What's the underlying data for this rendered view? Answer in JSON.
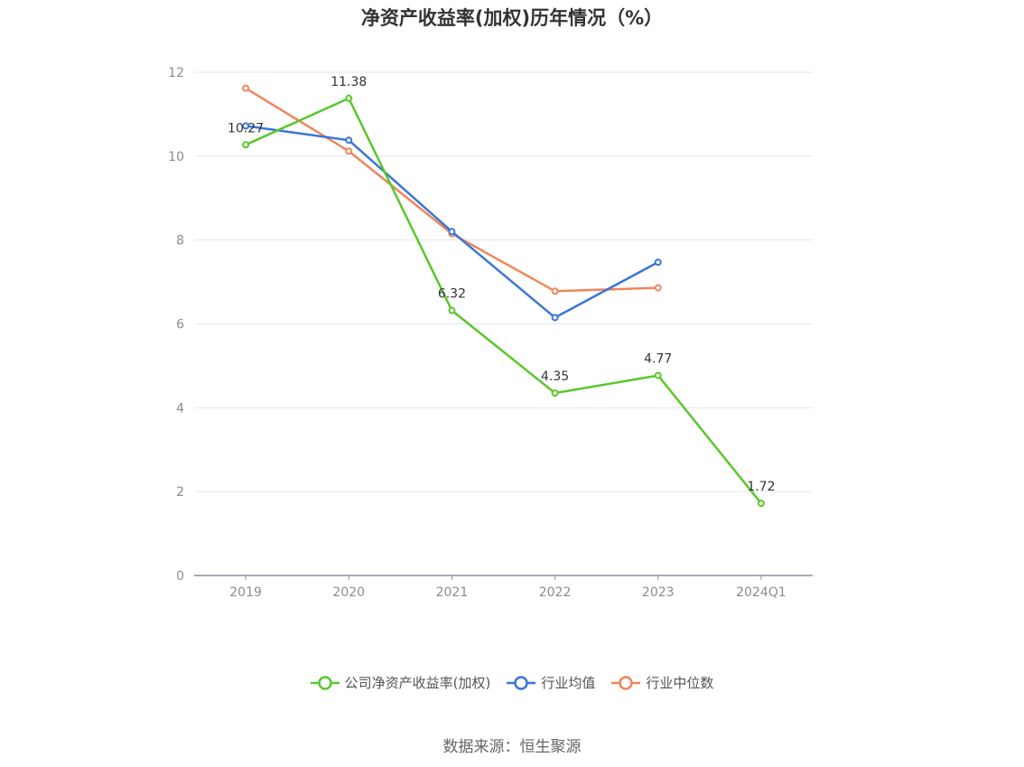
{
  "chart_data": {
    "type": "line",
    "title": "净资产收益率(加权)历年情况（%）",
    "categories": [
      "2019",
      "2020",
      "2021",
      "2022",
      "2023",
      "2024Q1"
    ],
    "ylim": [
      0,
      12
    ],
    "yticks": [
      0,
      2,
      4,
      6,
      8,
      10,
      12
    ],
    "grid": true,
    "legend_position": "bottom",
    "series": [
      {
        "name": "公司净资产收益率(加权)",
        "color": "#5ac72a",
        "values": [
          10.27,
          11.38,
          6.32,
          4.35,
          4.77,
          1.72
        ],
        "labels": [
          "10.27",
          "11.38",
          "6.32",
          "4.35",
          "4.77",
          "1.72"
        ]
      },
      {
        "name": "行业均值",
        "color": "#3a76d8",
        "values": [
          10.72,
          10.38,
          8.2,
          6.15,
          7.47,
          null
        ]
      },
      {
        "name": "行业中位数",
        "color": "#f0855a",
        "values": [
          11.62,
          10.12,
          8.15,
          6.78,
          6.86,
          null
        ]
      }
    ]
  },
  "source": "数据来源：恒生聚源"
}
